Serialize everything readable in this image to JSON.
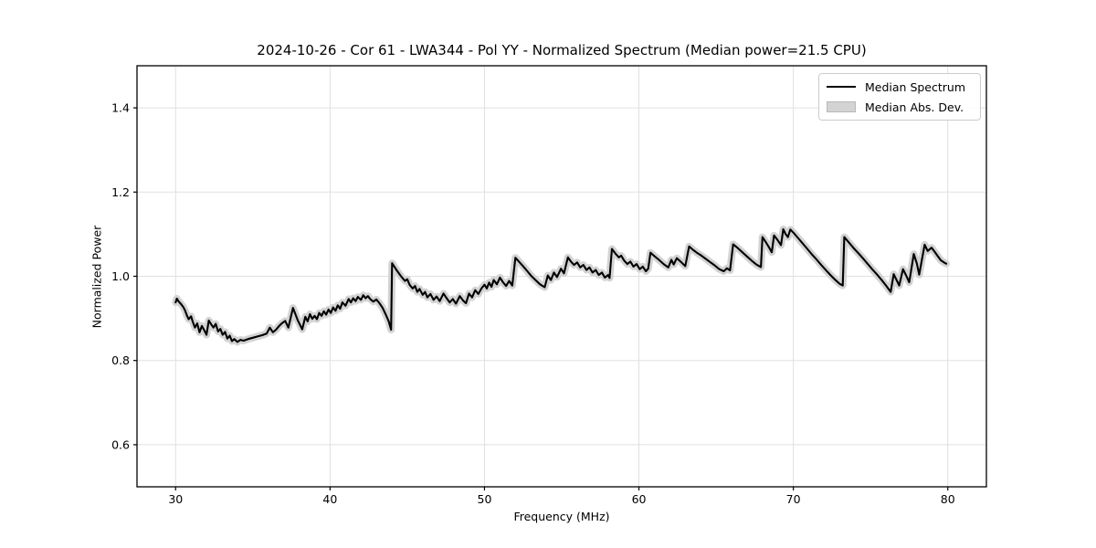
{
  "chart_data": {
    "type": "line",
    "title": "2024-10-26 - Cor 61 - LWA344 - Pol YY - Normalized Spectrum (Median power=21.5 CPU)",
    "xlabel": "Frequency (MHz)",
    "ylabel": "Normalized Power",
    "xlim": [
      27.5,
      82.5
    ],
    "ylim": [
      0.5,
      1.5
    ],
    "xticks": [
      {
        "v": 30,
        "label": "30"
      },
      {
        "v": 40,
        "label": "40"
      },
      {
        "v": 50,
        "label": "50"
      },
      {
        "v": 60,
        "label": "60"
      },
      {
        "v": 70,
        "label": "70"
      },
      {
        "v": 80,
        "label": "80"
      }
    ],
    "yticks": [
      {
        "v": 0.6,
        "label": "0.6"
      },
      {
        "v": 0.8,
        "label": "0.8"
      },
      {
        "v": 1.0,
        "label": "1.0"
      },
      {
        "v": 1.2,
        "label": "1.2"
      },
      {
        "v": 1.4,
        "label": "1.4"
      }
    ],
    "grid": true,
    "legend_position": "upper right",
    "colors": {
      "line": "#000000",
      "band": "#d3d3d3",
      "grid": "#e0e0e0",
      "spine": "#000000"
    },
    "band": {
      "name": "Median Abs. Dev.",
      "color": "#d3d3d3",
      "halfwidth": 0.006
    },
    "series": [
      {
        "name": "Median Spectrum",
        "color": "#000000",
        "points": [
          [
            30.0,
            0.938
          ],
          [
            30.08,
            0.947
          ],
          [
            30.2,
            0.94
          ],
          [
            30.35,
            0.934
          ],
          [
            30.5,
            0.927
          ],
          [
            30.62,
            0.918
          ],
          [
            30.72,
            0.908
          ],
          [
            30.85,
            0.898
          ],
          [
            31.0,
            0.905
          ],
          [
            31.1,
            0.893
          ],
          [
            31.25,
            0.878
          ],
          [
            31.4,
            0.888
          ],
          [
            31.55,
            0.867
          ],
          [
            31.7,
            0.882
          ],
          [
            31.85,
            0.872
          ],
          [
            32.0,
            0.861
          ],
          [
            32.15,
            0.895
          ],
          [
            32.3,
            0.886
          ],
          [
            32.45,
            0.878
          ],
          [
            32.6,
            0.887
          ],
          [
            32.75,
            0.869
          ],
          [
            32.9,
            0.875
          ],
          [
            33.05,
            0.861
          ],
          [
            33.2,
            0.868
          ],
          [
            33.35,
            0.852
          ],
          [
            33.5,
            0.859
          ],
          [
            33.65,
            0.846
          ],
          [
            33.8,
            0.851
          ],
          [
            34.0,
            0.844
          ],
          [
            34.2,
            0.849
          ],
          [
            34.4,
            0.847
          ],
          [
            34.7,
            0.851
          ],
          [
            35.0,
            0.854
          ],
          [
            35.3,
            0.857
          ],
          [
            35.6,
            0.86
          ],
          [
            35.9,
            0.864
          ],
          [
            36.1,
            0.878
          ],
          [
            36.3,
            0.867
          ],
          [
            36.5,
            0.873
          ],
          [
            36.7,
            0.882
          ],
          [
            36.9,
            0.889
          ],
          [
            37.1,
            0.894
          ],
          [
            37.3,
            0.878
          ],
          [
            37.6,
            0.925
          ],
          [
            37.9,
            0.896
          ],
          [
            38.2,
            0.874
          ],
          [
            38.4,
            0.904
          ],
          [
            38.55,
            0.893
          ],
          [
            38.7,
            0.91
          ],
          [
            38.85,
            0.899
          ],
          [
            39.0,
            0.906
          ],
          [
            39.15,
            0.898
          ],
          [
            39.3,
            0.913
          ],
          [
            39.45,
            0.906
          ],
          [
            39.6,
            0.917
          ],
          [
            39.75,
            0.909
          ],
          [
            39.9,
            0.921
          ],
          [
            40.05,
            0.913
          ],
          [
            40.2,
            0.926
          ],
          [
            40.35,
            0.918
          ],
          [
            40.5,
            0.931
          ],
          [
            40.65,
            0.923
          ],
          [
            40.8,
            0.938
          ],
          [
            41.0,
            0.93
          ],
          [
            41.2,
            0.946
          ],
          [
            41.35,
            0.938
          ],
          [
            41.5,
            0.948
          ],
          [
            41.65,
            0.941
          ],
          [
            41.8,
            0.951
          ],
          [
            42.0,
            0.944
          ],
          [
            42.15,
            0.955
          ],
          [
            42.3,
            0.948
          ],
          [
            42.45,
            0.953
          ],
          [
            42.6,
            0.946
          ],
          [
            42.8,
            0.94
          ],
          [
            43.0,
            0.945
          ],
          [
            43.2,
            0.936
          ],
          [
            43.4,
            0.925
          ],
          [
            43.6,
            0.91
          ],
          [
            43.8,
            0.893
          ],
          [
            43.95,
            0.873
          ],
          [
            44.02,
            1.031
          ],
          [
            44.3,
            1.015
          ],
          [
            44.6,
            1.0
          ],
          [
            44.85,
            0.989
          ],
          [
            45.0,
            0.993
          ],
          [
            45.15,
            0.98
          ],
          [
            45.35,
            0.971
          ],
          [
            45.5,
            0.977
          ],
          [
            45.65,
            0.963
          ],
          [
            45.8,
            0.97
          ],
          [
            46.0,
            0.956
          ],
          [
            46.15,
            0.963
          ],
          [
            46.3,
            0.95
          ],
          [
            46.5,
            0.958
          ],
          [
            46.7,
            0.944
          ],
          [
            46.9,
            0.952
          ],
          [
            47.1,
            0.941
          ],
          [
            47.35,
            0.959
          ],
          [
            47.55,
            0.948
          ],
          [
            47.75,
            0.938
          ],
          [
            47.95,
            0.946
          ],
          [
            48.15,
            0.935
          ],
          [
            48.4,
            0.953
          ],
          [
            48.6,
            0.943
          ],
          [
            48.8,
            0.936
          ],
          [
            49.0,
            0.959
          ],
          [
            49.2,
            0.95
          ],
          [
            49.4,
            0.967
          ],
          [
            49.6,
            0.958
          ],
          [
            49.8,
            0.971
          ],
          [
            50.0,
            0.98
          ],
          [
            50.15,
            0.971
          ],
          [
            50.3,
            0.985
          ],
          [
            50.45,
            0.975
          ],
          [
            50.6,
            0.991
          ],
          [
            50.8,
            0.981
          ],
          [
            51.0,
            0.997
          ],
          [
            51.2,
            0.986
          ],
          [
            51.4,
            0.977
          ],
          [
            51.6,
            0.989
          ],
          [
            51.8,
            0.978
          ],
          [
            52.0,
            1.044
          ],
          [
            52.25,
            1.034
          ],
          [
            52.5,
            1.024
          ],
          [
            52.75,
            1.013
          ],
          [
            53.0,
            1.002
          ],
          [
            53.3,
            0.991
          ],
          [
            53.6,
            0.981
          ],
          [
            53.9,
            0.974
          ],
          [
            54.1,
            1.002
          ],
          [
            54.3,
            0.991
          ],
          [
            54.5,
            1.009
          ],
          [
            54.7,
            0.998
          ],
          [
            54.95,
            1.018
          ],
          [
            55.15,
            1.007
          ],
          [
            55.4,
            1.045
          ],
          [
            55.6,
            1.035
          ],
          [
            55.8,
            1.027
          ],
          [
            56.0,
            1.033
          ],
          [
            56.2,
            1.021
          ],
          [
            56.4,
            1.027
          ],
          [
            56.6,
            1.015
          ],
          [
            56.8,
            1.021
          ],
          [
            57.0,
            1.009
          ],
          [
            57.2,
            1.015
          ],
          [
            57.4,
            1.003
          ],
          [
            57.6,
            1.009
          ],
          [
            57.8,
            0.997
          ],
          [
            58.0,
            1.003
          ],
          [
            58.1,
            0.996
          ],
          [
            58.25,
            1.065
          ],
          [
            58.5,
            1.053
          ],
          [
            58.7,
            1.045
          ],
          [
            58.85,
            1.049
          ],
          [
            59.05,
            1.037
          ],
          [
            59.25,
            1.029
          ],
          [
            59.45,
            1.035
          ],
          [
            59.65,
            1.023
          ],
          [
            59.85,
            1.029
          ],
          [
            60.05,
            1.017
          ],
          [
            60.25,
            1.023
          ],
          [
            60.45,
            1.012
          ],
          [
            60.6,
            1.018
          ],
          [
            60.75,
            1.056
          ],
          [
            61.0,
            1.048
          ],
          [
            61.3,
            1.039
          ],
          [
            61.6,
            1.029
          ],
          [
            61.9,
            1.021
          ],
          [
            62.1,
            1.039
          ],
          [
            62.25,
            1.028
          ],
          [
            62.45,
            1.043
          ],
          [
            62.7,
            1.035
          ],
          [
            63.0,
            1.024
          ],
          [
            63.25,
            1.071
          ],
          [
            63.5,
            1.063
          ],
          [
            63.75,
            1.056
          ],
          [
            64.0,
            1.05
          ],
          [
            64.3,
            1.042
          ],
          [
            64.6,
            1.034
          ],
          [
            64.9,
            1.026
          ],
          [
            65.2,
            1.017
          ],
          [
            65.5,
            1.012
          ],
          [
            65.7,
            1.019
          ],
          [
            65.9,
            1.014
          ],
          [
            66.1,
            1.076
          ],
          [
            66.4,
            1.067
          ],
          [
            66.7,
            1.057
          ],
          [
            67.0,
            1.047
          ],
          [
            67.3,
            1.037
          ],
          [
            67.6,
            1.028
          ],
          [
            67.9,
            1.022
          ],
          [
            68.0,
            1.093
          ],
          [
            68.2,
            1.082
          ],
          [
            68.4,
            1.07
          ],
          [
            68.6,
            1.057
          ],
          [
            68.75,
            1.097
          ],
          [
            69.0,
            1.085
          ],
          [
            69.2,
            1.074
          ],
          [
            69.35,
            1.112
          ],
          [
            69.5,
            1.1
          ],
          [
            69.65,
            1.093
          ],
          [
            69.8,
            1.111
          ],
          [
            70.0,
            1.104
          ],
          [
            70.3,
            1.091
          ],
          [
            70.6,
            1.078
          ],
          [
            70.9,
            1.065
          ],
          [
            71.2,
            1.052
          ],
          [
            71.5,
            1.04
          ],
          [
            71.8,
            1.027
          ],
          [
            72.1,
            1.015
          ],
          [
            72.4,
            1.003
          ],
          [
            72.7,
            0.992
          ],
          [
            73.0,
            0.982
          ],
          [
            73.2,
            0.978
          ],
          [
            73.3,
            1.093
          ],
          [
            73.6,
            1.08
          ],
          [
            73.9,
            1.067
          ],
          [
            74.2,
            1.055
          ],
          [
            74.5,
            1.043
          ],
          [
            74.8,
            1.03
          ],
          [
            75.1,
            1.017
          ],
          [
            75.4,
            1.005
          ],
          [
            75.7,
            0.992
          ],
          [
            76.0,
            0.978
          ],
          [
            76.3,
            0.963
          ],
          [
            76.5,
            1.005
          ],
          [
            76.7,
            0.99
          ],
          [
            76.85,
            0.978
          ],
          [
            77.1,
            1.017
          ],
          [
            77.3,
            1.002
          ],
          [
            77.5,
            0.986
          ],
          [
            77.8,
            1.053
          ],
          [
            78.0,
            1.03
          ],
          [
            78.15,
            1.004
          ],
          [
            78.5,
            1.075
          ],
          [
            78.7,
            1.06
          ],
          [
            78.95,
            1.068
          ],
          [
            79.15,
            1.058
          ],
          [
            79.35,
            1.048
          ],
          [
            79.55,
            1.038
          ],
          [
            79.75,
            1.033
          ],
          [
            79.9,
            1.03
          ]
        ]
      }
    ]
  },
  "legend": {
    "items": [
      {
        "label": "Median Spectrum",
        "swatch": "line-swatch"
      },
      {
        "label": "Median Abs. Dev.",
        "swatch": "patch-swatch"
      }
    ]
  }
}
